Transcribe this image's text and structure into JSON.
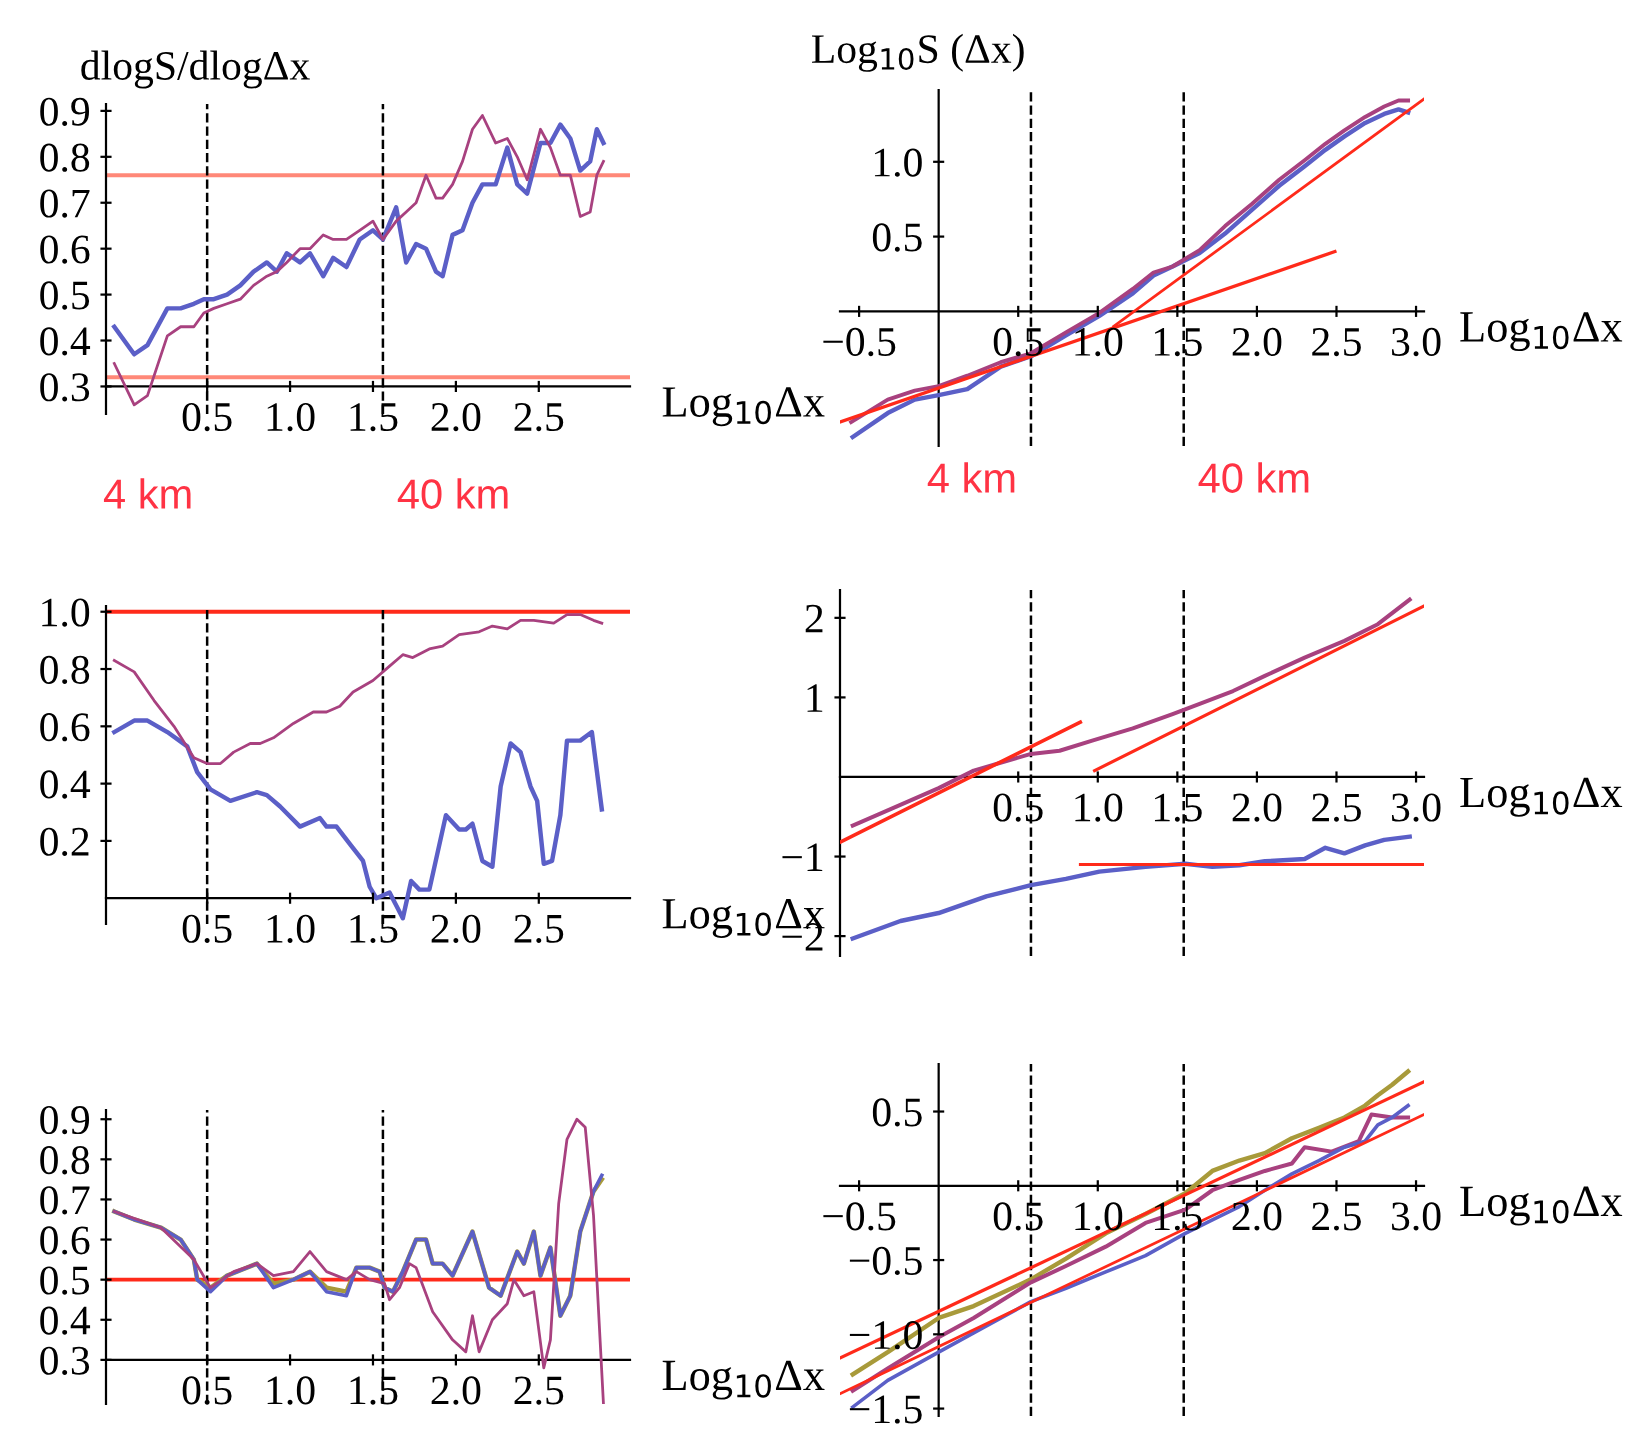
{
  "chart_data": [
    {
      "type": "line",
      "ylabel": "dlogS/dlogΔx",
      "xlabel": "Log$_{10}$Δx",
      "xlim": [
        -0.11,
        3.05
      ],
      "ylim": [
        0.24,
        0.915
      ],
      "xticks": [
        0.5,
        {
          "value": 1,
          "label": "1.0"
        },
        1.5,
        {
          "value": 2,
          "label": "2.0"
        },
        2.5
      ],
      "yticks": [
        0.3,
        0.4,
        0.5,
        0.6,
        0.7,
        0.8,
        0.9
      ],
      "ref_lines": [
        {
          "axis": "y",
          "value": 0.76,
          "color": "#ff8878"
        },
        {
          "axis": "y",
          "value": 0.32,
          "color": "#ff8878"
        },
        {
          "axis": "x",
          "value": 0.5,
          "color": "#000000",
          "line_style": "dashed"
        },
        {
          "axis": "x",
          "value": 1.56,
          "color": "#000000",
          "line_style": "dashed"
        }
      ],
      "series": [
        {
          "color": "#5b5fc7",
          "x": [
            -0.06,
            0.06,
            0.14,
            0.26,
            0.34,
            0.42,
            0.48,
            0.54,
            0.62,
            0.7,
            0.78,
            0.86,
            0.92,
            0.98,
            1.06,
            1.12,
            1.2,
            1.26,
            1.34,
            1.42,
            1.5,
            1.56,
            1.64,
            1.7,
            1.76,
            1.82,
            1.88,
            1.92,
            1.98,
            2.04,
            2.1,
            2.16,
            2.24,
            2.31,
            2.37,
            2.43,
            2.51,
            2.57,
            2.63,
            2.69,
            2.75,
            2.81,
            2.85,
            2.89
          ],
          "values": [
            0.43,
            0.37,
            0.39,
            0.47,
            0.47,
            0.48,
            0.49,
            0.49,
            0.5,
            0.52,
            0.55,
            0.57,
            0.55,
            0.59,
            0.57,
            0.59,
            0.54,
            0.58,
            0.56,
            0.62,
            0.64,
            0.62,
            0.69,
            0.57,
            0.61,
            0.6,
            0.55,
            0.54,
            0.63,
            0.64,
            0.7,
            0.74,
            0.74,
            0.82,
            0.74,
            0.72,
            0.83,
            0.83,
            0.87,
            0.84,
            0.77,
            0.79,
            0.86,
            0.83
          ]
        },
        {
          "color": "#a8417f",
          "x": [
            -0.06,
            0.06,
            0.14,
            0.26,
            0.34,
            0.42,
            0.48,
            0.54,
            0.62,
            0.7,
            0.78,
            0.86,
            0.92,
            0.98,
            1.06,
            1.12,
            1.2,
            1.26,
            1.34,
            1.42,
            1.5,
            1.56,
            1.64,
            1.7,
            1.76,
            1.82,
            1.88,
            1.92,
            1.98,
            2.04,
            2.1,
            2.16,
            2.24,
            2.31,
            2.37,
            2.43,
            2.51,
            2.57,
            2.63,
            2.69,
            2.75,
            2.81,
            2.85,
            2.89
          ],
          "values": [
            0.35,
            0.26,
            0.28,
            0.41,
            0.43,
            0.43,
            0.46,
            0.47,
            0.48,
            0.49,
            0.52,
            0.54,
            0.55,
            0.57,
            0.6,
            0.6,
            0.63,
            0.62,
            0.62,
            0.64,
            0.66,
            0.62,
            0.66,
            0.68,
            0.7,
            0.76,
            0.71,
            0.71,
            0.74,
            0.79,
            0.86,
            0.89,
            0.83,
            0.84,
            0.8,
            0.75,
            0.86,
            0.82,
            0.76,
            0.76,
            0.67,
            0.68,
            0.76,
            0.79
          ]
        }
      ]
    },
    {
      "type": "line",
      "ylabel": "Log$_{10}$S (Δx)",
      "xlabel": "Log$_{10}$Δx",
      "xlim": [
        -0.62,
        3.05
      ],
      "ylim": [
        -0.9,
        1.48
      ],
      "xticks": [
        {
          "value": -0.5,
          "label": "−0.5"
        },
        0.5,
        {
          "value": 1,
          "label": "1.0"
        },
        1.5,
        {
          "value": 2,
          "label": "2.0"
        },
        2.5,
        {
          "value": 3,
          "label": "3.0"
        }
      ],
      "yticks": [
        0.5,
        {
          "value": 1,
          "label": "1.0"
        }
      ],
      "ref_lines": [
        {
          "axis": "x",
          "value": 0.58,
          "color": "#000000",
          "line_style": "dashed"
        },
        {
          "axis": "x",
          "value": 1.54,
          "color": "#000000",
          "line_style": "dashed"
        }
      ],
      "series": [
        {
          "color": "#5b5fc7",
          "x": [
            -0.54,
            -0.32,
            -0.15,
            0,
            0.18,
            0.39,
            0.58,
            0.8,
            1.01,
            1.22,
            1.35,
            1.47,
            1.64,
            1.8,
            1.97,
            2.14,
            2.3,
            2.43,
            2.55,
            2.68,
            2.8,
            2.89,
            2.95
          ],
          "values": [
            -0.84,
            -0.68,
            -0.59,
            -0.56,
            -0.52,
            -0.37,
            -0.3,
            -0.16,
            -0.03,
            0.12,
            0.24,
            0.3,
            0.39,
            0.52,
            0.68,
            0.84,
            0.97,
            1.08,
            1.17,
            1.26,
            1.32,
            1.35,
            1.33
          ]
        },
        {
          "color": "#a8417f",
          "x": [
            -0.55,
            -0.32,
            -0.15,
            0,
            0.18,
            0.39,
            0.58,
            0.8,
            1.01,
            1.22,
            1.35,
            1.47,
            1.64,
            1.8,
            1.97,
            2.14,
            2.3,
            2.43,
            2.55,
            2.68,
            2.8,
            2.89,
            2.95
          ],
          "values": [
            -0.74,
            -0.59,
            -0.53,
            -0.5,
            -0.43,
            -0.34,
            -0.28,
            -0.14,
            -0.01,
            0.15,
            0.26,
            0.3,
            0.41,
            0.57,
            0.72,
            0.88,
            1.01,
            1.12,
            1.21,
            1.3,
            1.37,
            1.41,
            1.41
          ]
        },
        {
          "type": "line",
          "color": "#ff2a1a",
          "x": [
            -0.62,
            2.49
          ],
          "values": [
            -0.74,
            0.4
          ]
        },
        {
          "type": "line",
          "color": "#ff2a1a",
          "x": [
            1.1,
            3.05
          ],
          "values": [
            -0.1,
            1.42
          ]
        }
      ]
    },
    {
      "type": "line",
      "xlabel": "Log$_{10}$Δx",
      "xlim": [
        -0.11,
        3.05
      ],
      "ylim": [
        -0.09,
        1.02
      ],
      "xticks": [
        0.5,
        {
          "value": 1,
          "label": "1.0"
        },
        1.5,
        {
          "value": 2,
          "label": "2.0"
        },
        2.5
      ],
      "yticks": [
        0.2,
        0.4,
        0.6,
        0.8,
        {
          "value": 1,
          "label": "1.0"
        }
      ],
      "annotations": [
        "4 km",
        "40 km"
      ],
      "ref_lines": [
        {
          "axis": "y",
          "value": 1.0,
          "color": "#ff2a1a"
        },
        {
          "axis": "x",
          "value": 0.5,
          "color": "#000000",
          "line_style": "dashed"
        },
        {
          "axis": "x",
          "value": 1.56,
          "color": "#000000",
          "line_style": "dashed"
        }
      ],
      "series": [
        {
          "color": "#5b5fc7",
          "x": [
            -0.06,
            0.06,
            0.14,
            0.26,
            0.38,
            0.44,
            0.52,
            0.64,
            0.8,
            0.86,
            0.94,
            1.06,
            1.18,
            1.22,
            1.28,
            1.36,
            1.44,
            1.48,
            1.52,
            1.6,
            1.68,
            1.73,
            1.78,
            1.84,
            1.94,
            2.02,
            2.06,
            2.1,
            2.16,
            2.22,
            2.27,
            2.33,
            2.39,
            2.45,
            2.49,
            2.53,
            2.58,
            2.63,
            2.67,
            2.75,
            2.82,
            2.88
          ],
          "values": [
            0.58,
            0.62,
            0.62,
            0.58,
            0.53,
            0.44,
            0.38,
            0.34,
            0.37,
            0.36,
            0.32,
            0.25,
            0.28,
            0.25,
            0.25,
            0.19,
            0.13,
            0.04,
            0.0,
            0.02,
            -0.07,
            0.06,
            0.03,
            0.03,
            0.29,
            0.24,
            0.24,
            0.26,
            0.13,
            0.11,
            0.39,
            0.54,
            0.51,
            0.39,
            0.34,
            0.12,
            0.13,
            0.29,
            0.55,
            0.55,
            0.58,
            0.31
          ]
        },
        {
          "color": "#a8417f",
          "x": [
            -0.06,
            0.06,
            0.18,
            0.3,
            0.42,
            0.5,
            0.58,
            0.66,
            0.76,
            0.82,
            0.9,
            1.02,
            1.14,
            1.22,
            1.3,
            1.38,
            1.5,
            1.6,
            1.68,
            1.74,
            1.84,
            1.92,
            2.02,
            2.14,
            2.22,
            2.31,
            2.39,
            2.47,
            2.59,
            2.67,
            2.75,
            2.83,
            2.88
          ],
          "values": [
            0.83,
            0.79,
            0.69,
            0.6,
            0.49,
            0.47,
            0.47,
            0.51,
            0.54,
            0.54,
            0.56,
            0.61,
            0.65,
            0.65,
            0.67,
            0.72,
            0.76,
            0.81,
            0.85,
            0.84,
            0.87,
            0.88,
            0.92,
            0.93,
            0.95,
            0.94,
            0.97,
            0.97,
            0.96,
            0.99,
            0.99,
            0.97,
            0.96
          ]
        }
      ]
    },
    {
      "type": "line",
      "xlabel": "Log$_{10}$Δx",
      "xlim": [
        -0.62,
        3.05
      ],
      "ylim": [
        -2.25,
        2.35
      ],
      "xticks": [
        0.5,
        {
          "value": 1,
          "label": "1.0"
        },
        1.5,
        {
          "value": 2,
          "label": "2.0"
        },
        2.5,
        {
          "value": 3,
          "label": "3.0"
        }
      ],
      "yticks": [
        {
          "value": -2,
          "label": "−2"
        },
        {
          "value": -1,
          "label": "−1"
        },
        1,
        2
      ],
      "annotations": [
        "4 km",
        "40 km"
      ],
      "ref_lines": [
        {
          "axis": "x",
          "value": 0.58,
          "color": "#000000",
          "line_style": "dashed"
        },
        {
          "axis": "x",
          "value": 1.54,
          "color": "#000000",
          "line_style": "dashed"
        }
      ],
      "series": [
        {
          "color": "#5b5fc7",
          "x": [
            -0.54,
            -0.24,
            0,
            0.3,
            0.58,
            0.8,
            1.01,
            1.3,
            1.55,
            1.72,
            1.89,
            2.05,
            2.3,
            2.43,
            2.55,
            2.68,
            2.8,
            2.96
          ],
          "values": [
            -2.03,
            -1.81,
            -1.71,
            -1.5,
            -1.36,
            -1.28,
            -1.19,
            -1.13,
            -1.09,
            -1.13,
            -1.11,
            -1.06,
            -1.03,
            -0.89,
            -0.96,
            -0.86,
            -0.79,
            -0.75
          ]
        },
        {
          "color": "#a8417f",
          "x": [
            -0.54,
            -0.32,
            0,
            0.22,
            0.58,
            0.76,
            0.97,
            1.22,
            1.47,
            1.64,
            1.85,
            2.05,
            2.3,
            2.55,
            2.76,
            2.96
          ],
          "values": [
            -0.61,
            -0.42,
            -0.14,
            0.08,
            0.29,
            0.33,
            0.46,
            0.61,
            0.79,
            0.92,
            1.08,
            1.27,
            1.5,
            1.71,
            1.92,
            2.23
          ]
        },
        {
          "type": "line",
          "color": "#ff2a1a",
          "x": [
            -0.62,
            0.89
          ],
          "values": [
            -0.82,
            0.69
          ]
        },
        {
          "type": "line",
          "color": "#ff2a1a",
          "x": [
            0.98,
            3.05
          ],
          "values": [
            0.08,
            2.15
          ]
        },
        {
          "type": "line",
          "color": "#ff2a1a",
          "x": [
            0.89,
            3.05
          ],
          "values": [
            -1.1,
            -1.1
          ]
        }
      ]
    },
    {
      "type": "line",
      "xlabel": "Log$_{10}$Δx",
      "xlim": [
        -0.11,
        3.05
      ],
      "ylim": [
        0.19,
        0.923
      ],
      "xticks": [
        0.5,
        {
          "value": 1,
          "label": "1.0"
        },
        1.5,
        {
          "value": 2,
          "label": "2.0"
        },
        2.5
      ],
      "yticks": [
        0.3,
        0.4,
        0.5,
        0.6,
        0.7,
        0.8,
        0.9
      ],
      "ref_lines": [
        {
          "axis": "y",
          "value": 0.5,
          "color": "#ff2a1a"
        },
        {
          "axis": "x",
          "value": 0.5,
          "color": "#000000",
          "line_style": "dashed"
        },
        {
          "axis": "x",
          "value": 1.56,
          "color": "#000000",
          "line_style": "dashed"
        }
      ],
      "series": [
        {
          "color": "#a89a3a",
          "x": [
            -0.06,
            0.06,
            0.22,
            0.34,
            0.42,
            0.44,
            0.52,
            0.62,
            0.8,
            0.9,
            1.02,
            1.12,
            1.22,
            1.34,
            1.4,
            1.48,
            1.54,
            1.57,
            1.62,
            1.68,
            1.76,
            1.82,
            1.86,
            1.92,
            1.98,
            2.1,
            2.2,
            2.27,
            2.37,
            2.41,
            2.47,
            2.51,
            2.57,
            2.63,
            2.69,
            2.75,
            2.83,
            2.88
          ],
          "values": [
            0.67,
            0.65,
            0.63,
            0.6,
            0.55,
            0.5,
            0.48,
            0.51,
            0.54,
            0.49,
            0.5,
            0.52,
            0.48,
            0.47,
            0.53,
            0.53,
            0.52,
            0.48,
            0.47,
            0.52,
            0.6,
            0.6,
            0.54,
            0.54,
            0.51,
            0.62,
            0.48,
            0.46,
            0.57,
            0.54,
            0.62,
            0.51,
            0.58,
            0.41,
            0.46,
            0.62,
            0.72,
            0.75
          ]
        },
        {
          "color": "#5b5fc7",
          "x": [
            -0.06,
            0.06,
            0.22,
            0.34,
            0.42,
            0.44,
            0.52,
            0.62,
            0.8,
            0.9,
            1.02,
            1.12,
            1.22,
            1.34,
            1.4,
            1.48,
            1.54,
            1.57,
            1.62,
            1.68,
            1.76,
            1.82,
            1.86,
            1.92,
            1.98,
            2.1,
            2.2,
            2.27,
            2.37,
            2.41,
            2.47,
            2.51,
            2.57,
            2.63,
            2.69,
            2.75,
            2.83,
            2.88
          ],
          "values": [
            0.67,
            0.65,
            0.63,
            0.6,
            0.55,
            0.5,
            0.47,
            0.51,
            0.54,
            0.48,
            0.5,
            0.52,
            0.47,
            0.46,
            0.53,
            0.53,
            0.52,
            0.48,
            0.47,
            0.52,
            0.6,
            0.6,
            0.54,
            0.54,
            0.51,
            0.62,
            0.48,
            0.46,
            0.57,
            0.54,
            0.62,
            0.51,
            0.58,
            0.41,
            0.46,
            0.62,
            0.72,
            0.76
          ]
        },
        {
          "color": "#a8417f",
          "x": [
            -0.06,
            0.22,
            0.42,
            0.52,
            0.66,
            0.8,
            0.9,
            1.02,
            1.12,
            1.22,
            1.34,
            1.4,
            1.48,
            1.57,
            1.6,
            1.66,
            1.72,
            1.76,
            1.86,
            1.98,
            2.06,
            2.1,
            2.14,
            2.22,
            2.31,
            2.35,
            2.41,
            2.47,
            2.53,
            2.57,
            2.62,
            2.67,
            2.73,
            2.78,
            2.83,
            2.89
          ],
          "values": [
            0.67,
            0.63,
            0.55,
            0.48,
            0.52,
            0.54,
            0.51,
            0.52,
            0.57,
            0.52,
            0.5,
            0.52,
            0.5,
            0.49,
            0.45,
            0.48,
            0.54,
            0.53,
            0.42,
            0.35,
            0.32,
            0.41,
            0.32,
            0.4,
            0.44,
            0.5,
            0.46,
            0.47,
            0.28,
            0.35,
            0.69,
            0.85,
            0.9,
            0.88,
            0.66,
            0.19
          ]
        }
      ]
    },
    {
      "type": "line",
      "xlabel": "Log$_{10}$Δx",
      "xlim": [
        -0.62,
        3.05
      ],
      "ylim": [
        -1.55,
        0.82
      ],
      "xticks": [
        {
          "value": -0.5,
          "label": "−0.5"
        },
        0.5,
        {
          "value": 1,
          "label": "1.0"
        },
        1.5,
        {
          "value": 2,
          "label": "2.0"
        },
        2.5,
        {
          "value": 3,
          "label": "3.0"
        }
      ],
      "yticks": [
        {
          "value": -1.5,
          "label": "−1.5"
        },
        {
          "value": -1,
          "label": "−1.0"
        },
        {
          "value": -0.5,
          "label": "−0.5"
        },
        0.5
      ],
      "ref_lines": [
        {
          "axis": "x",
          "value": 0.58,
          "color": "#000000",
          "line_style": "dashed"
        },
        {
          "axis": "x",
          "value": 1.54,
          "color": "#000000",
          "line_style": "dashed"
        }
      ],
      "series": [
        {
          "color": "#a89a3a",
          "x": [
            -0.54,
            -0.32,
            0,
            0.22,
            0.58,
            0.8,
            1.05,
            1.3,
            1.55,
            1.72,
            1.89,
            2.05,
            2.22,
            2.39,
            2.55,
            2.68,
            2.76,
            2.85,
            2.95
          ],
          "values": [
            -1.27,
            -1.12,
            -0.89,
            -0.81,
            -0.63,
            -0.49,
            -0.32,
            -0.19,
            -0.05,
            0.1,
            0.17,
            0.22,
            0.32,
            0.39,
            0.46,
            0.54,
            0.61,
            0.68,
            0.77
          ]
        },
        {
          "color": "#a8417f",
          "x": [
            -0.54,
            -0.32,
            0,
            0.22,
            0.58,
            0.8,
            1.05,
            1.3,
            1.55,
            1.72,
            1.89,
            2.05,
            2.22,
            2.3,
            2.47,
            2.64,
            2.72,
            2.85,
            2.95
          ],
          "values": [
            -1.38,
            -1.23,
            -1.02,
            -0.89,
            -0.65,
            -0.54,
            -0.41,
            -0.25,
            -0.16,
            -0.03,
            0.04,
            0.1,
            0.15,
            0.26,
            0.23,
            0.3,
            0.48,
            0.46,
            0.46
          ]
        },
        {
          "color": "#5b5fc7",
          "x": [
            -0.54,
            -0.32,
            0,
            0.22,
            0.58,
            0.8,
            1.05,
            1.3,
            1.55,
            1.72,
            1.89,
            2.05,
            2.22,
            2.39,
            2.55,
            2.68,
            2.76,
            2.85,
            2.95
          ],
          "values": [
            -1.49,
            -1.31,
            -1.12,
            -0.99,
            -0.78,
            -0.69,
            -0.58,
            -0.47,
            -0.32,
            -0.23,
            -0.14,
            -0.03,
            0.08,
            0.17,
            0.26,
            0.3,
            0.41,
            0.46,
            0.54
          ]
        },
        {
          "type": "line",
          "color": "#ff2a1a",
          "x": [
            -0.62,
            3.05
          ],
          "values": [
            -1.16,
            0.7
          ]
        },
        {
          "type": "line",
          "color": "#ff2a1a",
          "x": [
            -0.62,
            3.05
          ],
          "values": [
            -1.4,
            0.48
          ]
        }
      ]
    }
  ]
}
